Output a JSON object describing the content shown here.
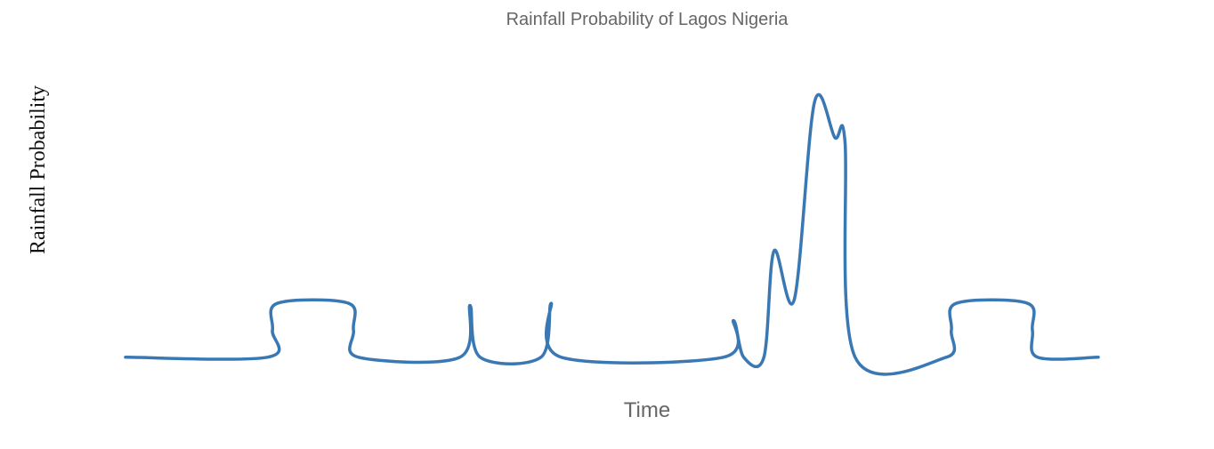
{
  "chart_data": {
    "type": "line",
    "title": "Rainfall Probability of Lagos Nigeria",
    "xlabel": "Time",
    "ylabel": "Rainfall Probability",
    "x_tick_labels": [],
    "y_tick_labels": [],
    "grid": false,
    "legend": "none",
    "line_color": "#3a78b4",
    "points": [
      [
        0,
        0
      ],
      [
        14,
        0
      ],
      [
        14.5,
        0.5
      ],
      [
        15,
        1
      ],
      [
        22,
        1
      ],
      [
        22.5,
        0.5
      ],
      [
        23,
        0
      ],
      [
        33,
        0
      ],
      [
        34,
        0.96
      ],
      [
        35,
        0
      ],
      [
        41,
        0
      ],
      [
        42,
        1
      ],
      [
        43,
        0
      ],
      [
        59,
        0
      ],
      [
        60,
        0.68
      ],
      [
        61,
        0
      ],
      [
        63,
        0
      ],
      [
        64,
        1.97
      ],
      [
        66,
        1.07
      ],
      [
        68,
        4.73
      ],
      [
        70,
        4.07
      ],
      [
        71,
        4.0
      ],
      [
        72,
        0
      ],
      [
        81,
        0
      ],
      [
        81.5,
        0.5
      ],
      [
        82,
        1
      ],
      [
        89,
        1
      ],
      [
        89.5,
        0.5
      ],
      [
        90,
        0
      ],
      [
        96,
        0
      ]
    ],
    "xlim": [
      0,
      96
    ],
    "ylim": [
      -0.3,
      5.3
    ]
  }
}
